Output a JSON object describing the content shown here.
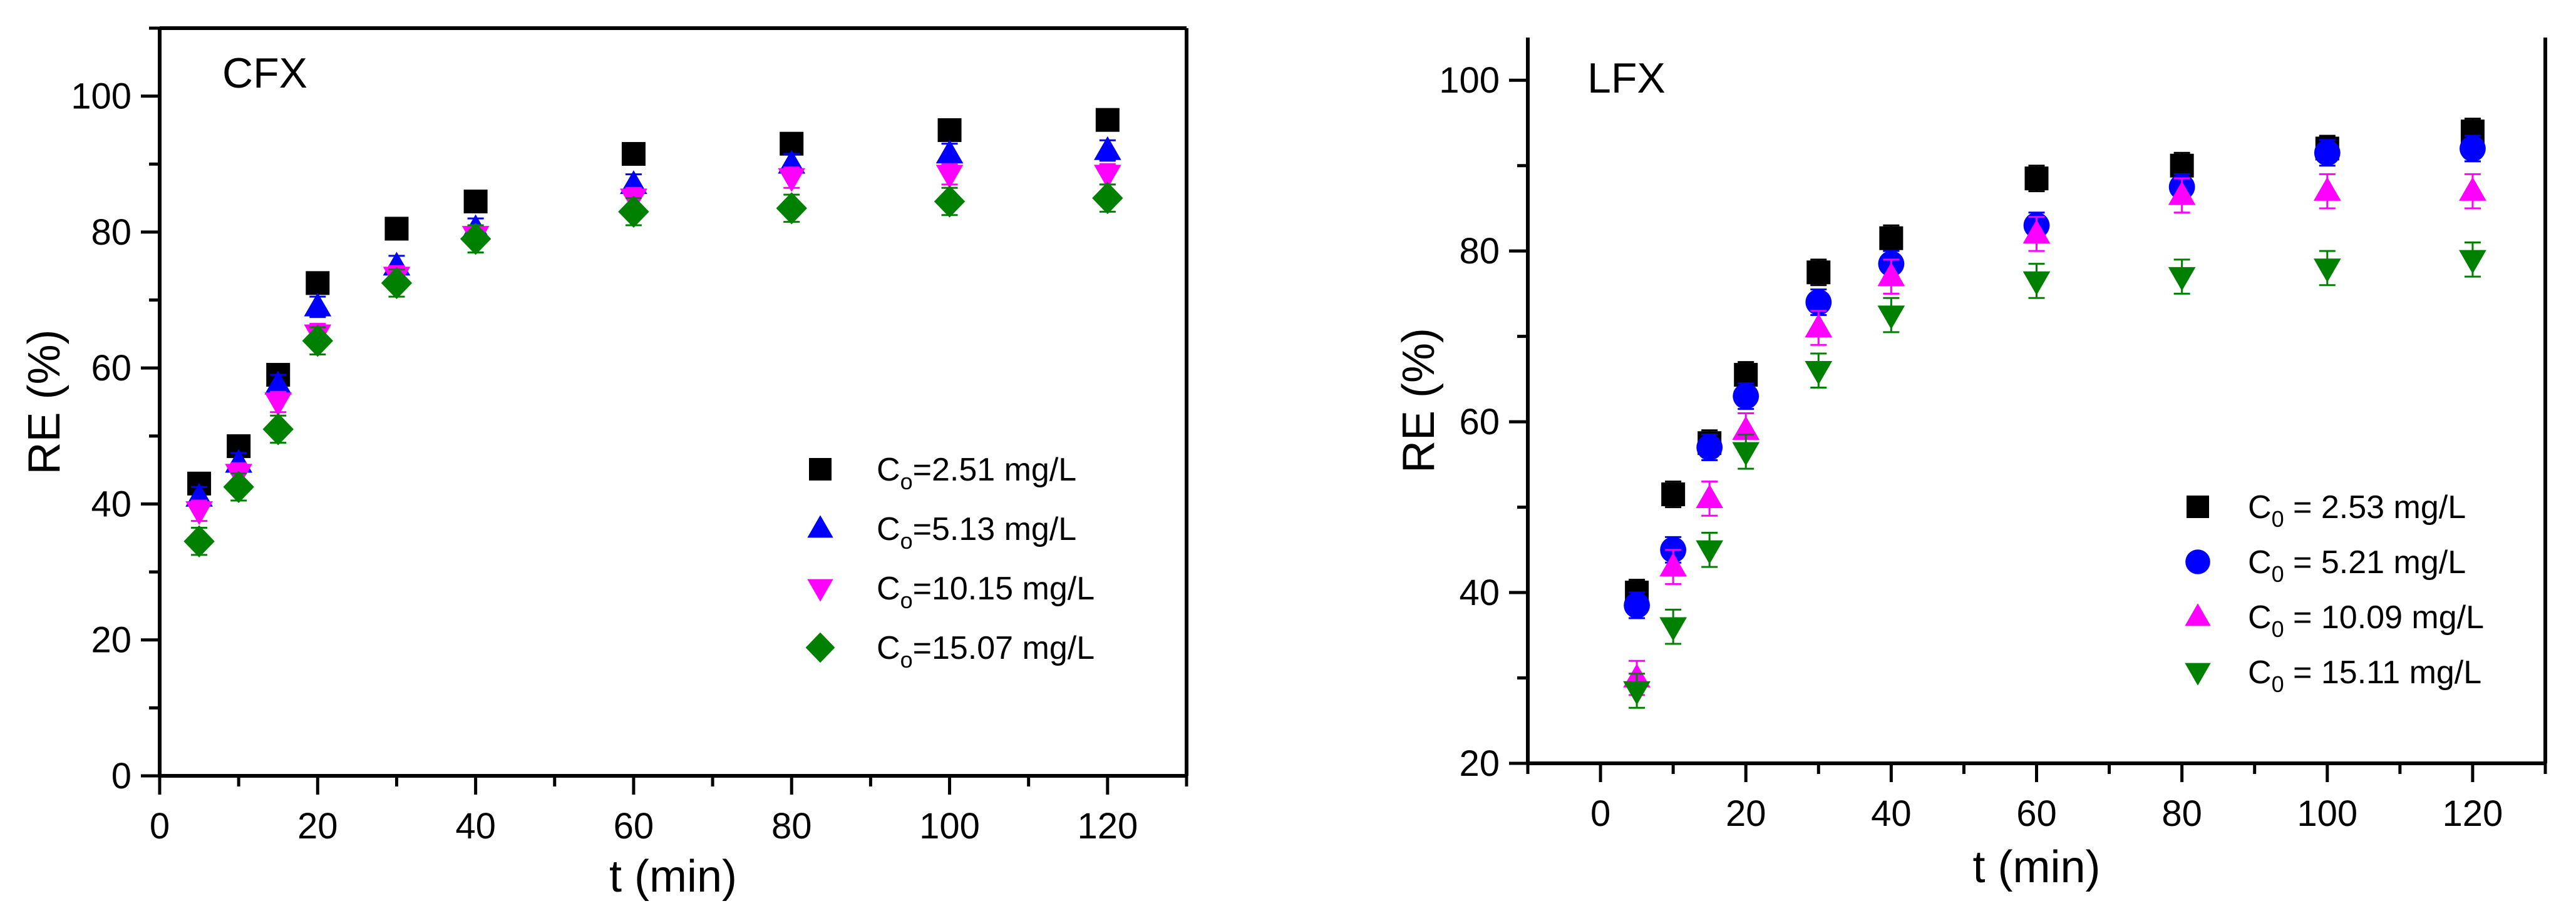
{
  "chart_data": [
    {
      "type": "scatter",
      "panel_label": "CFX",
      "xlabel": "t (min)",
      "ylabel": "RE (%)",
      "xlim": [
        0,
        130
      ],
      "ylim": [
        0,
        110
      ],
      "xticks": [
        0,
        20,
        40,
        60,
        80,
        100,
        120
      ],
      "yticks": [
        0,
        20,
        40,
        60,
        80,
        100
      ],
      "x": [
        5,
        10,
        15,
        20,
        30,
        40,
        60,
        80,
        100,
        120
      ],
      "series": [
        {
          "marker": "square",
          "color": "#000000",
          "legend_main": "C",
          "legend_sub": "o",
          "legend_rest": "=2.51 mg/L",
          "values": [
            43,
            48.5,
            59,
            72.5,
            80.5,
            84.5,
            91.5,
            93,
            95,
            96.5
          ],
          "err": [
            1.5,
            1.5,
            1.5,
            1.5,
            1.5,
            1.5,
            1.5,
            1.5,
            1.5,
            1.5
          ]
        },
        {
          "marker": "triangle-up",
          "color": "#0000ff",
          "legend_main": "C",
          "legend_sub": "o",
          "legend_rest": "=5.13 mg/L",
          "values": [
            41,
            46,
            57.5,
            69,
            75,
            80.5,
            87,
            90,
            91.5,
            92
          ],
          "err": [
            1.5,
            1.5,
            1.5,
            1.5,
            1.5,
            1.5,
            1.5,
            1.5,
            1.5,
            1.5
          ]
        },
        {
          "marker": "triangle-down",
          "color": "#ff00ff",
          "legend_main": "C",
          "legend_sub": "o",
          "legend_rest": "=10.15 mg/L",
          "values": [
            39,
            44.5,
            55,
            65,
            73.5,
            79.5,
            85,
            88,
            88.5,
            88.5
          ],
          "err": [
            1.5,
            1.5,
            1.5,
            1.5,
            1.5,
            1.5,
            1.5,
            1.5,
            1.5,
            1.5
          ]
        },
        {
          "marker": "diamond",
          "color": "#008000",
          "legend_main": "C",
          "legend_sub": "o",
          "legend_rest": "=15.07 mg/L",
          "values": [
            34.5,
            42.5,
            51,
            64,
            72.5,
            79,
            83,
            83.5,
            84.5,
            85
          ],
          "err": [
            2,
            2,
            2,
            2,
            2,
            2,
            2,
            2,
            2,
            2
          ]
        }
      ]
    },
    {
      "type": "scatter",
      "panel_label": "LFX",
      "xlabel": "t (min)",
      "ylabel": "RE (%)",
      "xlim": [
        -10,
        130
      ],
      "ylim": [
        20,
        105
      ],
      "xticks": [
        0,
        20,
        40,
        60,
        80,
        100,
        120
      ],
      "yticks": [
        20,
        40,
        60,
        80,
        100
      ],
      "x": [
        5,
        10,
        15,
        20,
        30,
        40,
        60,
        80,
        100,
        120
      ],
      "series": [
        {
          "marker": "square",
          "color": "#000000",
          "legend_main": "C",
          "legend_sub": "0",
          "legend_rest": " = 2.53 mg/L",
          "values": [
            40,
            51.5,
            57.5,
            65.5,
            77.5,
            81.5,
            88.5,
            90,
            92,
            94
          ],
          "err": [
            1.5,
            1.5,
            1.5,
            1.5,
            1.5,
            1.5,
            1.5,
            1.5,
            1.5,
            1.5
          ]
        },
        {
          "marker": "circle",
          "color": "#0000ff",
          "legend_main": "C",
          "legend_sub": "0",
          "legend_rest": " = 5.21 mg/L",
          "values": [
            38.5,
            45,
            57,
            63,
            74,
            78.5,
            83,
            87.5,
            91.5,
            92
          ],
          "err": [
            1.5,
            1.5,
            1.5,
            1.5,
            1.5,
            1.5,
            1.5,
            1.5,
            1.5,
            1.5
          ]
        },
        {
          "marker": "triangle-up",
          "color": "#ff00ff",
          "legend_main": "C",
          "legend_sub": "0",
          "legend_rest": " = 10.09 mg/L",
          "values": [
            30,
            43,
            51,
            59,
            71,
            77,
            82,
            86.5,
            87,
            87
          ],
          "err": [
            2,
            2,
            2,
            2,
            2,
            2,
            2,
            2,
            2,
            2
          ]
        },
        {
          "marker": "triangle-down",
          "color": "#008000",
          "legend_main": "C",
          "legend_sub": "0",
          "legend_rest": " = 15.11 mg/L",
          "values": [
            28.5,
            36,
            45,
            56.5,
            66,
            72.5,
            76.5,
            77,
            78,
            79
          ],
          "err": [
            2,
            2,
            2,
            2,
            2,
            2,
            2,
            2,
            2,
            2
          ]
        }
      ]
    }
  ]
}
